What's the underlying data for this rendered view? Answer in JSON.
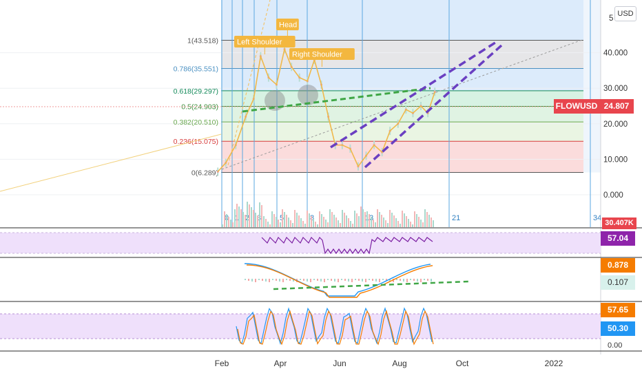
{
  "currency_button": "USD",
  "price_panel": {
    "axis_ticks": [
      {
        "value": 40,
        "label": "40.000"
      },
      {
        "value": 30,
        "label": "30.000"
      },
      {
        "value": 20,
        "label": "20.000"
      },
      {
        "value": 10,
        "label": "10.000"
      },
      {
        "value": 0,
        "label": "0.000"
      }
    ],
    "top_tick_partial": "5",
    "symbol_label": "FLOWUSD",
    "last_price": "24.807",
    "last_price_value": 24.807,
    "volume_badge": "30.407K",
    "fib_levels": [
      {
        "label": "1(43.518)",
        "value": 43.518,
        "color": "#555555"
      },
      {
        "label": "0.786(35.551)",
        "value": 35.551,
        "color": "#4a90c2"
      },
      {
        "label": "0.618(29.297)",
        "value": 29.297,
        "color": "#148a5a"
      },
      {
        "label": "0.5(24.903)",
        "value": 24.903,
        "color": "#3c8f3c"
      },
      {
        "label": "0.382(20.510)",
        "value": 20.51,
        "color": "#6aa84f"
      },
      {
        "label": "0.236(15.075)",
        "value": 15.075,
        "color": "#d73a3a"
      },
      {
        "label": "0(6.289)",
        "value": 6.289,
        "color": "#555555"
      }
    ],
    "pattern_labels": [
      "Left Shoulder",
      "Head",
      "Right Shoulder"
    ],
    "fib_time_numbers": [
      "0",
      "1",
      "2",
      "3",
      "5",
      "8",
      "13",
      "21",
      "34"
    ]
  },
  "time_axis": [
    "Feb",
    "Apr",
    "Jun",
    "Aug",
    "Oct",
    "2022"
  ],
  "rsi_panel": {
    "value": "57.04",
    "color": "#8e24aa"
  },
  "macd_panel": {
    "value_1": "0.878",
    "value_2": "0.107",
    "color_1": "#f57c00",
    "color_2": "#26a69a"
  },
  "stoch_panel": {
    "value_1": "57.65",
    "value_2": "50.30",
    "color_1": "#f57c00",
    "color_2": "#2196f3",
    "axis_label": "0.00"
  },
  "chart_data": {
    "type": "line",
    "title": "",
    "ylim": [
      -5,
      52
    ],
    "grid": true,
    "series": [
      {
        "name": "",
        "x": [
          "2021-01-28",
          "2021-02-05",
          "2021-02-15",
          "2021-02-25",
          "2021-03-05",
          "2021-03-12",
          "2021-03-20",
          "2021-03-28",
          "2021-04-05",
          "2021-04-12",
          "2021-04-20",
          "2021-04-28",
          "2021-05-05",
          "2021-05-12",
          "2021-05-19",
          "2021-05-26",
          "2021-06-02",
          "2021-06-10",
          "2021-06-18",
          "2021-06-26",
          "2021-07-04",
          "2021-07-12",
          "2021-07-20",
          "2021-07-28",
          "2021-08-05",
          "2021-08-12",
          "2021-08-20",
          "2021-08-27",
          "2021-09-03"
        ],
        "y": [
          6.5,
          9,
          14,
          22,
          27,
          39,
          33,
          31,
          41,
          36,
          33,
          32,
          38,
          31,
          22,
          14,
          14,
          13,
          8,
          11,
          14,
          12,
          18,
          20,
          24,
          23,
          25,
          23,
          29
        ]
      }
    ]
  }
}
